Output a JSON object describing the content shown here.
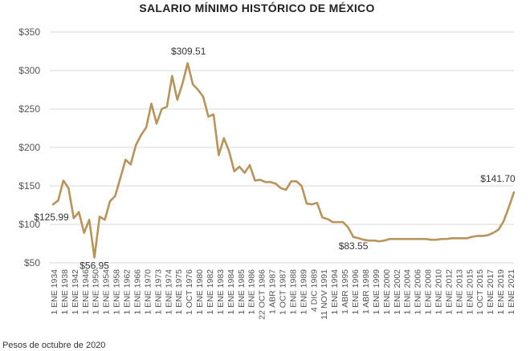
{
  "chart_data": {
    "type": "line",
    "title": "SALARIO MÍNIMO HISTÓRICO DE MÉXICO",
    "footnote": "Pesos de octubre de 2020",
    "line_color": "#b8935a",
    "grid": true,
    "ylim": [
      50,
      350
    ],
    "yticks": [
      {
        "value": 50,
        "label": "$50"
      },
      {
        "value": 100,
        "label": "$100"
      },
      {
        "value": 150,
        "label": "$150"
      },
      {
        "value": 200,
        "label": "$200"
      },
      {
        "value": 250,
        "label": "$250"
      },
      {
        "value": 300,
        "label": "$300"
      },
      {
        "value": 350,
        "label": "$350"
      }
    ],
    "x_tick_labels": [
      "1 ENE 1934",
      "1 ENE 1938",
      "1 ENE 1942",
      "1 ENE 1946",
      "1 ENE 1950",
      "1 ENE 1954",
      "1 ENE 1958",
      "1 ENE 1962",
      "1 ENE 1966",
      "1 ENE 1970",
      "1 ENE 1973",
      "1 ENE 1974",
      "1 ENE 1975",
      "1 OCT 1976",
      "1 ENE 1980",
      "1 ENE 1982",
      "1 ENE 1983",
      "1 ENE 1984",
      "1 ENE 1985",
      "1 ENE 1986",
      "22 OCT 1986",
      "1 ABR 1987",
      "1 OCT 1987",
      "1 ENE 1988",
      "1 ENE 1989",
      "4 DIC 1989",
      "11 NOV 1991",
      "1 ENE 1994",
      "1 ABR 1995",
      "1 ENE 1996",
      "1 ABR 1998",
      "1 ENE 1999",
      "1 ENE 2000",
      "1 ENE 2002",
      "1 ENE 2004",
      "1 ENE 2006",
      "1 ENE 2008",
      "1 ENE 2010",
      "1 ENE 2012",
      "1 ENE 2013",
      "1 ENE 2015",
      "1 OCT 2015",
      "1 ENE 2017",
      "1 ENE 2019",
      "1 ENE 2021"
    ],
    "series": [
      {
        "values": [
          125.99,
          131,
          157,
          147,
          108,
          116,
          89,
          106,
          56.95,
          110,
          106,
          130,
          137,
          160,
          184,
          178,
          203,
          216,
          226,
          257,
          231,
          250,
          253,
          293,
          262,
          283,
          309.51,
          282,
          275,
          266,
          240,
          243,
          190,
          212,
          195,
          169,
          175,
          167,
          177,
          157,
          158,
          155,
          155,
          153,
          147,
          145,
          156,
          156,
          150,
          127,
          126,
          128,
          109,
          107,
          103,
          103,
          103,
          96,
          83.55,
          82,
          80,
          79,
          79,
          78,
          79,
          81,
          81,
          81,
          81,
          81,
          81,
          81,
          81,
          80,
          80,
          81,
          81,
          82,
          82,
          82,
          82,
          84,
          85,
          85,
          86,
          89,
          93,
          104,
          122,
          141.7
        ]
      }
    ],
    "annotations": [
      {
        "label": "$125.99",
        "value": 125.99,
        "point_index": 0
      },
      {
        "label": "$56.95",
        "value": 56.95,
        "point_index": 8
      },
      {
        "label": "$309.51",
        "value": 309.51,
        "point_index": 26
      },
      {
        "label": "$83.55",
        "value": 83.55,
        "point_index": 58
      },
      {
        "label": "$141.70",
        "value": 141.7,
        "point_index": 89
      }
    ]
  }
}
